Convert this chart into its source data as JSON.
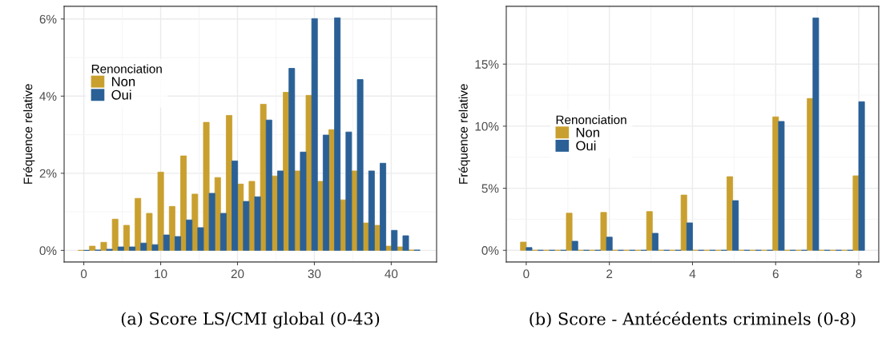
{
  "chart_data": [
    {
      "type": "bar",
      "ylabel": "Fréquence relative",
      "legend_title": "Renonciation",
      "legend": "top left",
      "grid": true,
      "annotations": [
        "(a) Score LS/CMI global (0-43)"
      ],
      "x": [
        0,
        1.483,
        2.966,
        4.448,
        5.931,
        7.414,
        8.897,
        10.379,
        11.862,
        13.345,
        14.828,
        16.31,
        17.793,
        19.276,
        20.759,
        22.241,
        23.724,
        25.207,
        26.69,
        28.172,
        29.655,
        31.138,
        32.621,
        34.103,
        35.586,
        37.069,
        38.552,
        40.034,
        41.517,
        43
      ],
      "series": [
        {
          "name": "Non",
          "color": "#c9a02f",
          "values": [
            0,
            0.11,
            0.21,
            0.81,
            0.65,
            1.35,
            0.96,
            2.03,
            1.14,
            2.45,
            1.46,
            3.32,
            1.89,
            3.5,
            1.72,
            1.79,
            3.79,
            1.93,
            4.1,
            2.06,
            4.02,
            1.79,
            3.13,
            1.31,
            2.06,
            0.71,
            0.65,
            0.11,
            0.09,
            0.01
          ]
        },
        {
          "name": "Oui",
          "color": "#2a6096",
          "values": [
            0,
            0.01,
            0.03,
            0.09,
            0.09,
            0.19,
            0.15,
            0.4,
            0.36,
            0.79,
            0.59,
            1.48,
            0.96,
            2.32,
            1.27,
            1.39,
            3.38,
            2.06,
            4.72,
            2.55,
            6.01,
            2.99,
            6.03,
            3.07,
            4.43,
            2.06,
            2.26,
            0.52,
            0.38,
            0.01
          ]
        }
      ],
      "xlim": [
        -2.56,
        45.9
      ],
      "xticks": [
        0,
        10,
        20,
        30,
        40
      ],
      "ylim": [
        -0.3,
        6.33
      ],
      "yticks": [
        {
          "value": 0,
          "label": "0%"
        },
        {
          "value": 2,
          "label": "2%"
        },
        {
          "value": 4,
          "label": "4%"
        },
        {
          "value": 6,
          "label": "6%"
        }
      ]
    },
    {
      "type": "bar",
      "ylabel": "Fréquence relative",
      "legend_title": "Renonciation",
      "legend": "left",
      "grid": true,
      "annotations": [
        "(b) Score - Antécédents criminels (0-8)"
      ],
      "x": [
        0,
        0.276,
        0.552,
        0.828,
        1.103,
        1.379,
        1.655,
        1.931,
        2.207,
        2.483,
        2.759,
        3.034,
        3.31,
        3.586,
        3.862,
        4.138,
        4.414,
        4.69,
        4.966,
        5.241,
        5.517,
        5.793,
        6.069,
        6.345,
        6.621,
        6.897,
        7.172,
        7.448,
        7.724,
        8
      ],
      "series": [
        {
          "name": "Non",
          "color": "#c9a02f",
          "values": [
            0.66,
            0,
            0,
            0,
            2.99,
            0,
            0,
            3.05,
            0,
            0,
            0,
            3.12,
            0,
            0,
            4.45,
            0,
            0,
            0,
            5.93,
            0,
            0,
            0,
            10.75,
            0,
            0,
            12.23,
            0,
            0,
            0,
            6.0
          ]
        },
        {
          "name": "Oui",
          "color": "#2a6096",
          "values": [
            0.22,
            0,
            0,
            0,
            0.73,
            0,
            0,
            1.06,
            0,
            0,
            0,
            1.37,
            0,
            0,
            2.21,
            0,
            0,
            0,
            4.0,
            0,
            0,
            0,
            10.38,
            0,
            0,
            18.72,
            0,
            0,
            0,
            11.97
          ]
        }
      ],
      "xlim": [
        -0.48,
        8.48
      ],
      "xticks": [
        0,
        2,
        4,
        6,
        8
      ],
      "ylim": [
        -0.94,
        19.66
      ],
      "yticks": [
        {
          "value": 0,
          "label": "0%"
        },
        {
          "value": 5,
          "label": "5%"
        },
        {
          "value": 10,
          "label": "10%"
        },
        {
          "value": 15,
          "label": "15%"
        }
      ]
    }
  ]
}
